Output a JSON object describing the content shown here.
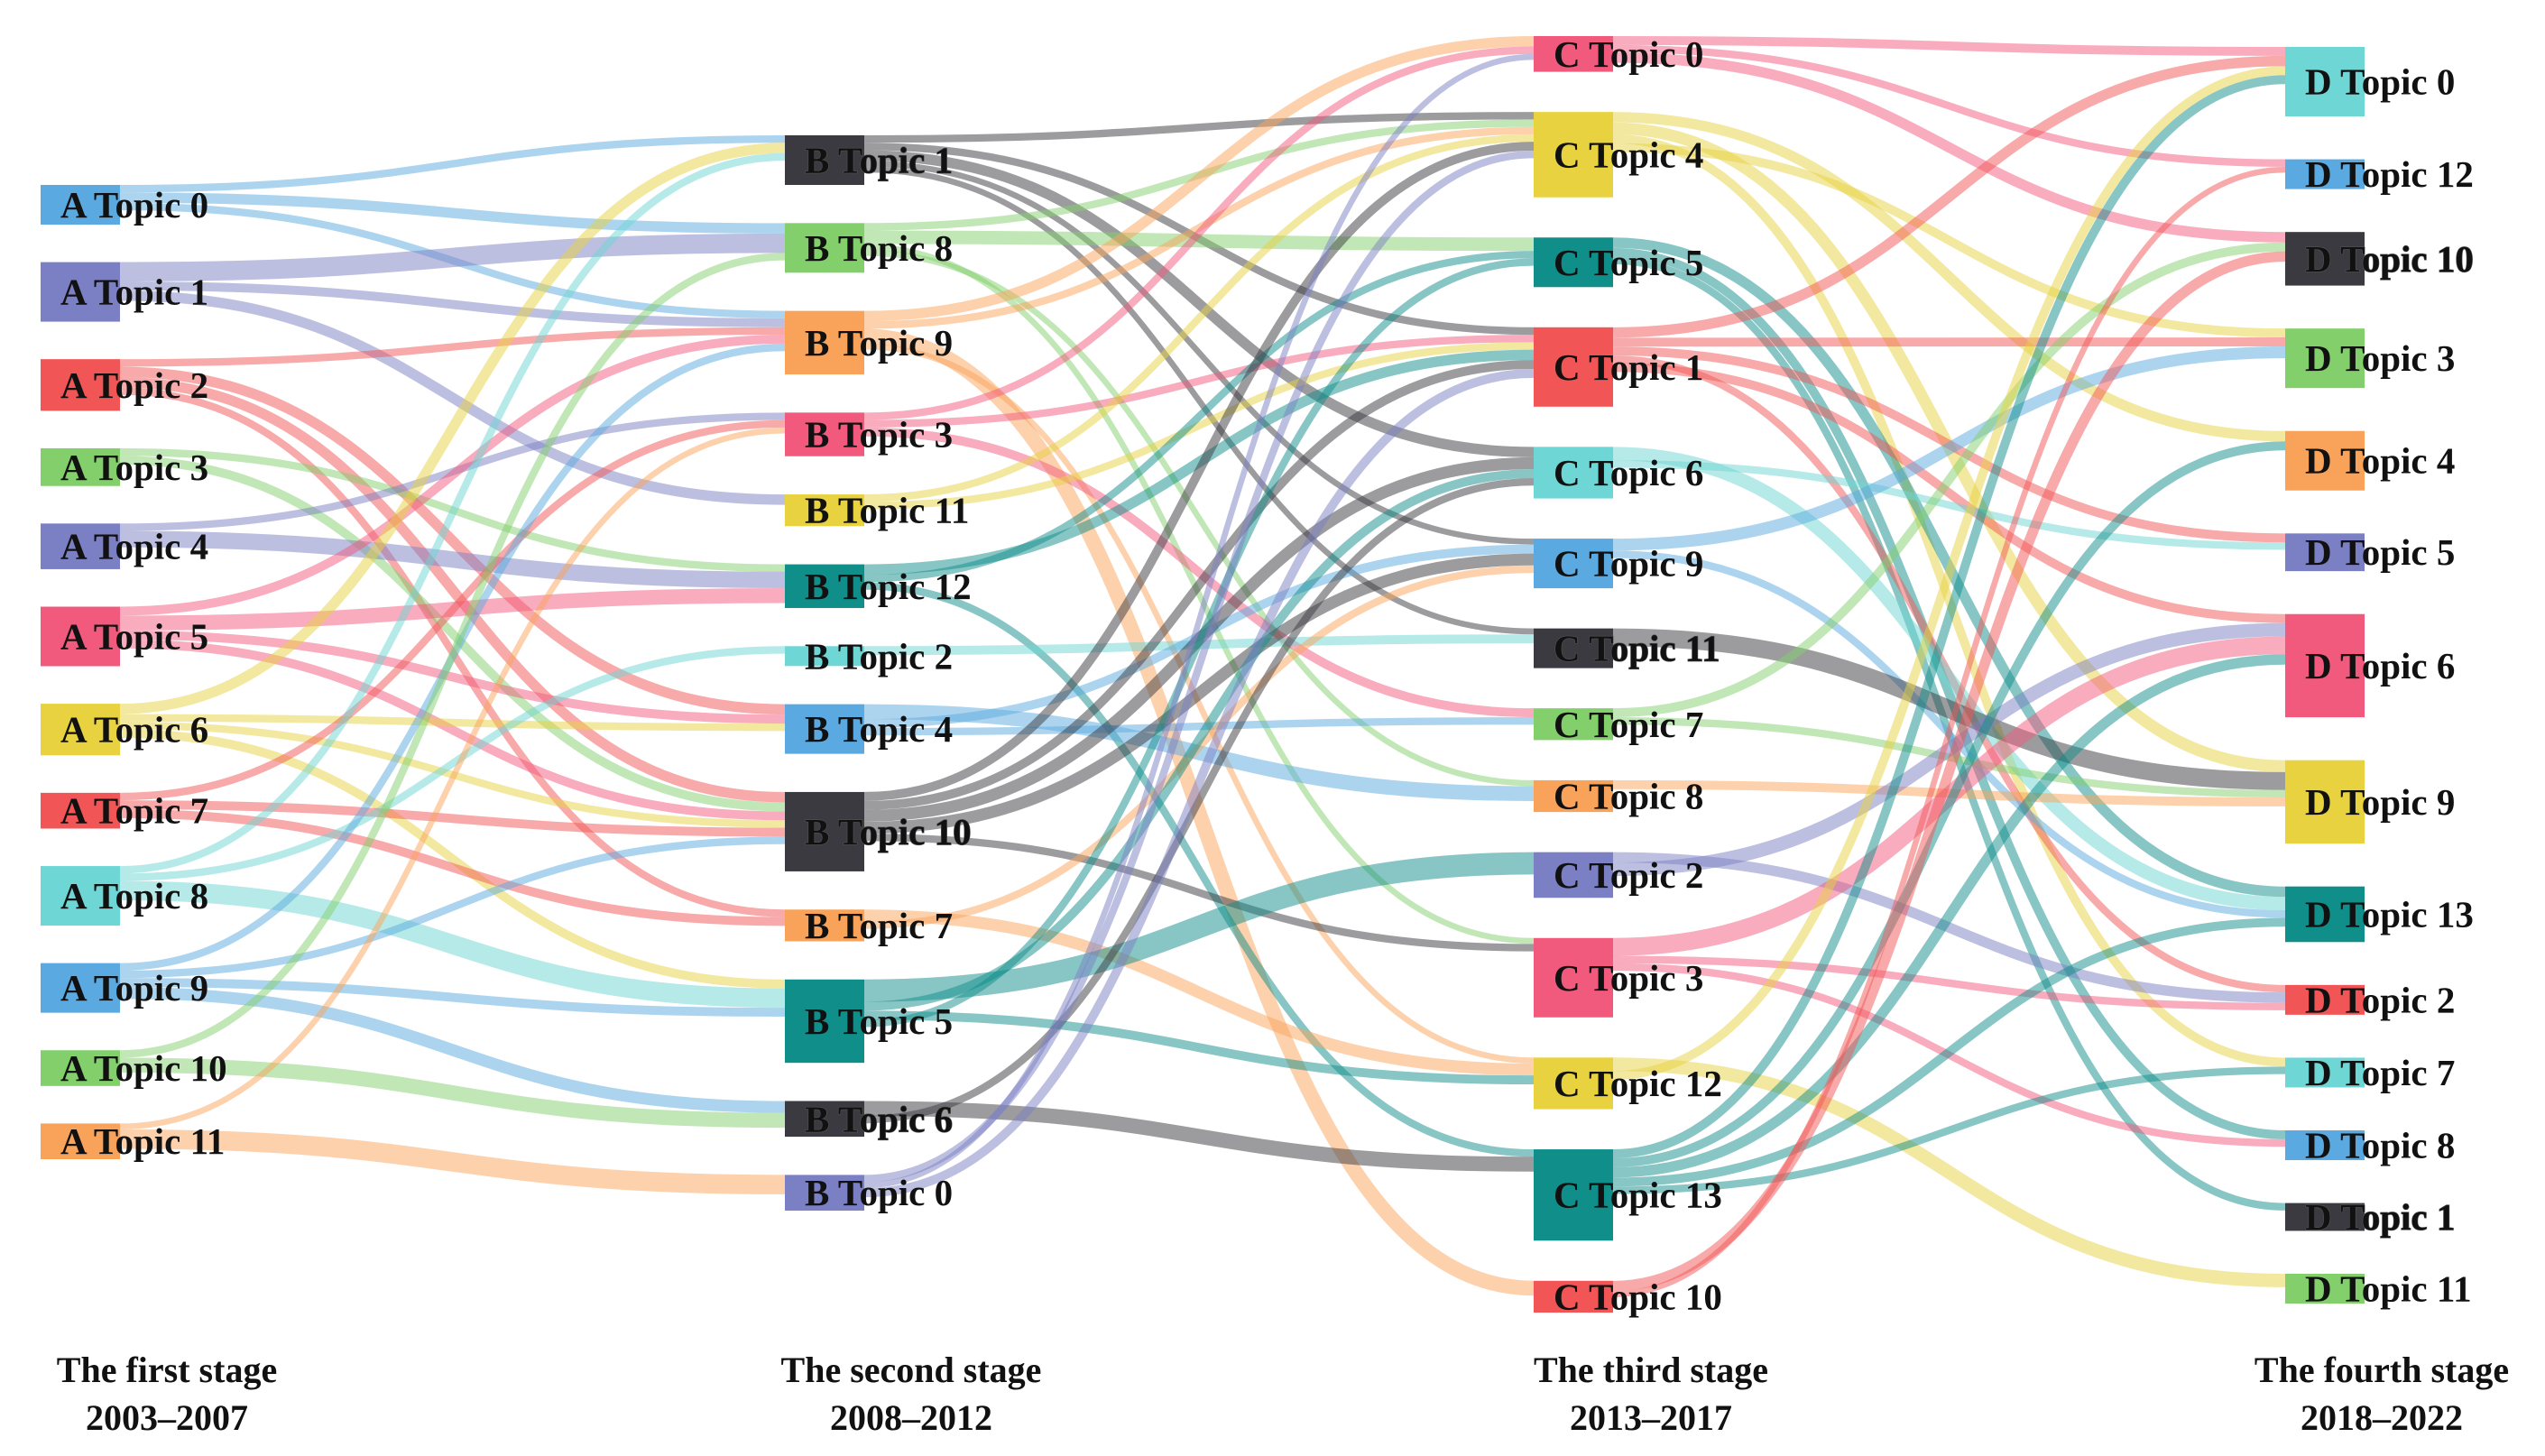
{
  "colors": {
    "blue": "#5aa9e0",
    "purple": "#7b7fc4",
    "red": "#f25555",
    "green": "#82cf6b",
    "pink": "#f25a7d",
    "yellow": "#e8d23f",
    "cyan": "#6ed6d4",
    "orange": "#f9a35a",
    "teal": "#108e8a",
    "dark": "#3a3a40"
  },
  "stages": [
    {
      "id": "A",
      "label": "The first stage",
      "years": "2003–2007",
      "nodes": [
        {
          "id": "A0",
          "label": "A Topic 0",
          "color": "blue",
          "value": 2
        },
        {
          "id": "A1",
          "label": "A Topic 1",
          "color": "purple",
          "value": 3
        },
        {
          "id": "A2",
          "label": "A Topic 2",
          "color": "red",
          "value": 2.6
        },
        {
          "id": "A3",
          "label": "A Topic 3",
          "color": "green",
          "value": 1.9
        },
        {
          "id": "A4",
          "label": "A Topic 4",
          "color": "purple",
          "value": 2.3
        },
        {
          "id": "A5",
          "label": "A Topic 5",
          "color": "pink",
          "value": 3
        },
        {
          "id": "A6",
          "label": "A Topic 6",
          "color": "yellow",
          "value": 2.6
        },
        {
          "id": "A7",
          "label": "A Topic 7",
          "color": "red",
          "value": 1.8
        },
        {
          "id": "A8",
          "label": "A Topic 8",
          "color": "cyan",
          "value": 3
        },
        {
          "id": "A9",
          "label": "A Topic 9",
          "color": "blue",
          "value": 2.5
        },
        {
          "id": "A10",
          "label": "A Topic 10",
          "color": "green",
          "value": 1.8
        },
        {
          "id": "A11",
          "label": "A Topic 11",
          "color": "orange",
          "value": 1.8
        }
      ]
    },
    {
      "id": "B",
      "label": "The second stage",
      "years": "2008–2012",
      "nodes": [
        {
          "id": "B1",
          "label": "B Topic 1",
          "color": "dark",
          "value": 2.5
        },
        {
          "id": "B8",
          "label": "B Topic 8",
          "color": "green",
          "value": 2.5
        },
        {
          "id": "B9",
          "label": "B Topic 9",
          "color": "orange",
          "value": 3.2
        },
        {
          "id": "B3",
          "label": "B Topic 3",
          "color": "pink",
          "value": 2.2
        },
        {
          "id": "B11",
          "label": "B Topic 11",
          "color": "yellow",
          "value": 1.6
        },
        {
          "id": "B12",
          "label": "B Topic 12",
          "color": "teal",
          "value": 2.2
        },
        {
          "id": "B2",
          "label": "B Topic 2",
          "color": "cyan",
          "value": 1
        },
        {
          "id": "B4",
          "label": "B Topic 4",
          "color": "blue",
          "value": 2.5
        },
        {
          "id": "B10",
          "label": "B Topic 10",
          "color": "dark",
          "value": 4
        },
        {
          "id": "B7",
          "label": "B Topic 7",
          "color": "orange",
          "value": 1.6
        },
        {
          "id": "B5",
          "label": "B Topic 5",
          "color": "teal",
          "value": 4.2
        },
        {
          "id": "B6",
          "label": "B Topic 6",
          "color": "dark",
          "value": 1.8
        },
        {
          "id": "B0",
          "label": "B Topic 0",
          "color": "purple",
          "value": 1.8
        }
      ]
    },
    {
      "id": "C",
      "label": "The third stage",
      "years": "2013–2017",
      "nodes": [
        {
          "id": "C0",
          "label": "C Topic 0",
          "color": "pink",
          "value": 1.8
        },
        {
          "id": "C4",
          "label": "C Topic 4",
          "color": "yellow",
          "value": 4.3
        },
        {
          "id": "C5",
          "label": "C Topic 5",
          "color": "teal",
          "value": 2.5
        },
        {
          "id": "C1",
          "label": "C Topic 1",
          "color": "red",
          "value": 4
        },
        {
          "id": "C6",
          "label": "C Topic 6",
          "color": "cyan",
          "value": 2.6
        },
        {
          "id": "C9",
          "label": "C Topic 9",
          "color": "blue",
          "value": 2.5
        },
        {
          "id": "C11",
          "label": "C Topic 11",
          "color": "dark",
          "value": 2
        },
        {
          "id": "C7",
          "label": "C Topic 7",
          "color": "green",
          "value": 1.6
        },
        {
          "id": "C8",
          "label": "C Topic 8",
          "color": "orange",
          "value": 1.6
        },
        {
          "id": "C2",
          "label": "C Topic 2",
          "color": "purple",
          "value": 2.3
        },
        {
          "id": "C3",
          "label": "C Topic 3",
          "color": "pink",
          "value": 4
        },
        {
          "id": "C12",
          "label": "C Topic 12",
          "color": "yellow",
          "value": 2.6
        },
        {
          "id": "C13",
          "label": "C Topic 13",
          "color": "teal",
          "value": 4.6
        },
        {
          "id": "C10",
          "label": "C Topic 10",
          "color": "red",
          "value": 1.6
        }
      ]
    },
    {
      "id": "D",
      "label": "The fourth stage",
      "years": "2018–2022",
      "nodes": [
        {
          "id": "D0",
          "label": "D Topic 0",
          "color": "cyan",
          "value": 3.5
        },
        {
          "id": "D12",
          "label": "D Topic 12",
          "color": "blue",
          "value": 1.5
        },
        {
          "id": "D10",
          "label": "D Topic 10",
          "color": "dark",
          "value": 2.7
        },
        {
          "id": "D3",
          "label": "D Topic 3",
          "color": "green",
          "value": 3
        },
        {
          "id": "D4",
          "label": "D Topic 4",
          "color": "orange",
          "value": 3
        },
        {
          "id": "D5",
          "label": "D Topic 5",
          "color": "purple",
          "value": 1.9
        },
        {
          "id": "D6",
          "label": "D Topic 6",
          "color": "pink",
          "value": 5.2
        },
        {
          "id": "D9",
          "label": "D Topic 9",
          "color": "yellow",
          "value": 4.2
        },
        {
          "id": "D13",
          "label": "D Topic 13",
          "color": "teal",
          "value": 2.8
        },
        {
          "id": "D2",
          "label": "D Topic 2",
          "color": "red",
          "value": 1.5
        },
        {
          "id": "D7",
          "label": "D Topic 7",
          "color": "cyan",
          "value": 1.5
        },
        {
          "id": "D8",
          "label": "D Topic 8",
          "color": "blue",
          "value": 1.5
        },
        {
          "id": "D1",
          "label": "D Topic 1",
          "color": "dark",
          "value": 1.4
        },
        {
          "id": "D11",
          "label": "D Topic 11",
          "color": "green",
          "value": 1.5
        }
      ]
    }
  ],
  "links": [
    {
      "source": "A0",
      "target": "B1",
      "value": 0.5
    },
    {
      "source": "A0",
      "target": "B8",
      "value": 0.7
    },
    {
      "source": "A0",
      "target": "B9",
      "value": 0.5
    },
    {
      "source": "A1",
      "target": "B8",
      "value": 1.3
    },
    {
      "source": "A1",
      "target": "B9",
      "value": 0.6
    },
    {
      "source": "A1",
      "target": "B11",
      "value": 0.7
    },
    {
      "source": "A2",
      "target": "B9",
      "value": 0.5
    },
    {
      "source": "A2",
      "target": "B4",
      "value": 0.7
    },
    {
      "source": "A2",
      "target": "B10",
      "value": 0.7
    },
    {
      "source": "A2",
      "target": "B7",
      "value": 0.5
    },
    {
      "source": "A3",
      "target": "B12",
      "value": 0.5
    },
    {
      "source": "A3",
      "target": "B10",
      "value": 0.6
    },
    {
      "source": "A4",
      "target": "B3",
      "value": 0.5
    },
    {
      "source": "A4",
      "target": "B12",
      "value": 1.1
    },
    {
      "source": "A5",
      "target": "B9",
      "value": 0.6
    },
    {
      "source": "A5",
      "target": "B12",
      "value": 1
    },
    {
      "source": "A5",
      "target": "B4",
      "value": 0.6
    },
    {
      "source": "A5",
      "target": "B10",
      "value": 0.6
    },
    {
      "source": "A6",
      "target": "B1",
      "value": 0.7
    },
    {
      "source": "A6",
      "target": "B4",
      "value": 0.5
    },
    {
      "source": "A6",
      "target": "B10",
      "value": 0.5
    },
    {
      "source": "A6",
      "target": "B5",
      "value": 0.6
    },
    {
      "source": "A7",
      "target": "B3",
      "value": 0.5
    },
    {
      "source": "A7",
      "target": "B10",
      "value": 0.6
    },
    {
      "source": "A7",
      "target": "B7",
      "value": 0.6
    },
    {
      "source": "A8",
      "target": "B1",
      "value": 0.5
    },
    {
      "source": "A8",
      "target": "B2",
      "value": 0.5
    },
    {
      "source": "A8",
      "target": "B5",
      "value": 1.3
    },
    {
      "source": "A9",
      "target": "B9",
      "value": 0.5
    },
    {
      "source": "A9",
      "target": "B10",
      "value": 0.5
    },
    {
      "source": "A9",
      "target": "B5",
      "value": 0.6
    },
    {
      "source": "A9",
      "target": "B6",
      "value": 0.8
    },
    {
      "source": "A10",
      "target": "B8",
      "value": 0.5
    },
    {
      "source": "A10",
      "target": "B6",
      "value": 1
    },
    {
      "source": "A11",
      "target": "B3",
      "value": 0.4
    },
    {
      "source": "A11",
      "target": "B0",
      "value": 1.3
    },
    {
      "source": "B1",
      "target": "C4",
      "value": 0.5
    },
    {
      "source": "B1",
      "target": "C1",
      "value": 0.5
    },
    {
      "source": "B1",
      "target": "C6",
      "value": 0.7
    },
    {
      "source": "B1",
      "target": "C9",
      "value": 0.4
    },
    {
      "source": "B1",
      "target": "C11",
      "value": 0.4
    },
    {
      "source": "B8",
      "target": "C4",
      "value": 0.5
    },
    {
      "source": "B8",
      "target": "C5",
      "value": 0.9
    },
    {
      "source": "B8",
      "target": "C3",
      "value": 0.4
    },
    {
      "source": "B8",
      "target": "C8",
      "value": 0.4
    },
    {
      "source": "B9",
      "target": "C0",
      "value": 0.7
    },
    {
      "source": "B9",
      "target": "C4",
      "value": 0.5
    },
    {
      "source": "B9",
      "target": "C10",
      "value": 1
    },
    {
      "source": "B9",
      "target": "C12",
      "value": 0.4
    },
    {
      "source": "B3",
      "target": "C0",
      "value": 0.5
    },
    {
      "source": "B3",
      "target": "C1",
      "value": 0.5
    },
    {
      "source": "B3",
      "target": "C7",
      "value": 0.6
    },
    {
      "source": "B11",
      "target": "C4",
      "value": 0.5
    },
    {
      "source": "B11",
      "target": "C1",
      "value": 0.5
    },
    {
      "source": "B12",
      "target": "C1",
      "value": 0.7
    },
    {
      "source": "B12",
      "target": "C5",
      "value": 0.5
    },
    {
      "source": "B12",
      "target": "C13",
      "value": 0.5
    },
    {
      "source": "B2",
      "target": "C11",
      "value": 0.6
    },
    {
      "source": "B4",
      "target": "C8",
      "value": 1
    },
    {
      "source": "B4",
      "target": "C9",
      "value": 0.6
    },
    {
      "source": "B4",
      "target": "C7",
      "value": 0.5
    },
    {
      "source": "B10",
      "target": "C4",
      "value": 0.6
    },
    {
      "source": "B10",
      "target": "C1",
      "value": 0.6
    },
    {
      "source": "B10",
      "target": "C6",
      "value": 0.8
    },
    {
      "source": "B10",
      "target": "C9",
      "value": 0.8
    },
    {
      "source": "B10",
      "target": "C3",
      "value": 0.5
    },
    {
      "source": "B7",
      "target": "C12",
      "value": 0.8
    },
    {
      "source": "B7",
      "target": "C9",
      "value": 0.5
    },
    {
      "source": "B5",
      "target": "C2",
      "value": 1.5
    },
    {
      "source": "B5",
      "target": "C6",
      "value": 0.6
    },
    {
      "source": "B5",
      "target": "C12",
      "value": 0.6
    },
    {
      "source": "B5",
      "target": "C5",
      "value": 0.5
    },
    {
      "source": "B6",
      "target": "C13",
      "value": 1
    },
    {
      "source": "B6",
      "target": "C6",
      "value": 0.5
    },
    {
      "source": "B0",
      "target": "C4",
      "value": 0.5
    },
    {
      "source": "B0",
      "target": "C0",
      "value": 0.4
    },
    {
      "source": "B0",
      "target": "C1",
      "value": 0.6
    },
    {
      "source": "C0",
      "target": "D0",
      "value": 0.6
    },
    {
      "source": "C0",
      "target": "D12",
      "value": 0.5
    },
    {
      "source": "C0",
      "target": "D10",
      "value": 0.7
    },
    {
      "source": "C4",
      "target": "D4",
      "value": 0.7
    },
    {
      "source": "C4",
      "target": "D9",
      "value": 0.8
    },
    {
      "source": "C4",
      "target": "D7",
      "value": 0.6
    },
    {
      "source": "C4",
      "target": "D3",
      "value": 0.6
    },
    {
      "source": "C5",
      "target": "D13",
      "value": 0.7
    },
    {
      "source": "C5",
      "target": "D8",
      "value": 0.6
    },
    {
      "source": "C5",
      "target": "D1",
      "value": 0.5
    },
    {
      "source": "C1",
      "target": "D0",
      "value": 0.7
    },
    {
      "source": "C1",
      "target": "D3",
      "value": 0.6
    },
    {
      "source": "C1",
      "target": "D5",
      "value": 0.6
    },
    {
      "source": "C1",
      "target": "D2",
      "value": 0.5
    },
    {
      "source": "C1",
      "target": "D6",
      "value": 0.6
    },
    {
      "source": "C6",
      "target": "D13",
      "value": 0.9
    },
    {
      "source": "C6",
      "target": "D5",
      "value": 0.5
    },
    {
      "source": "C9",
      "target": "D3",
      "value": 0.8
    },
    {
      "source": "C9",
      "target": "D13",
      "value": 0.5
    },
    {
      "source": "C11",
      "target": "D9",
      "value": 1.2
    },
    {
      "source": "C7",
      "target": "D10",
      "value": 0.6
    },
    {
      "source": "C7",
      "target": "D9",
      "value": 0.5
    },
    {
      "source": "C8",
      "target": "D9",
      "value": 0.6
    },
    {
      "source": "C2",
      "target": "D2",
      "value": 0.7
    },
    {
      "source": "C2",
      "target": "D6",
      "value": 0.9
    },
    {
      "source": "C3",
      "target": "D6",
      "value": 1.2
    },
    {
      "source": "C3",
      "target": "D2",
      "value": 0.5
    },
    {
      "source": "C3",
      "target": "D8",
      "value": 0.5
    },
    {
      "source": "C12",
      "target": "D11",
      "value": 0.9
    },
    {
      "source": "C12",
      "target": "D0",
      "value": 0.6
    },
    {
      "source": "C13",
      "target": "D0",
      "value": 0.6
    },
    {
      "source": "C13",
      "target": "D4",
      "value": 0.6
    },
    {
      "source": "C13",
      "target": "D6",
      "value": 0.7
    },
    {
      "source": "C13",
      "target": "D13",
      "value": 0.6
    },
    {
      "source": "C13",
      "target": "D7",
      "value": 0.5
    },
    {
      "source": "C10",
      "target": "D10",
      "value": 0.7
    },
    {
      "source": "C10",
      "target": "D12",
      "value": 0.4
    }
  ]
}
